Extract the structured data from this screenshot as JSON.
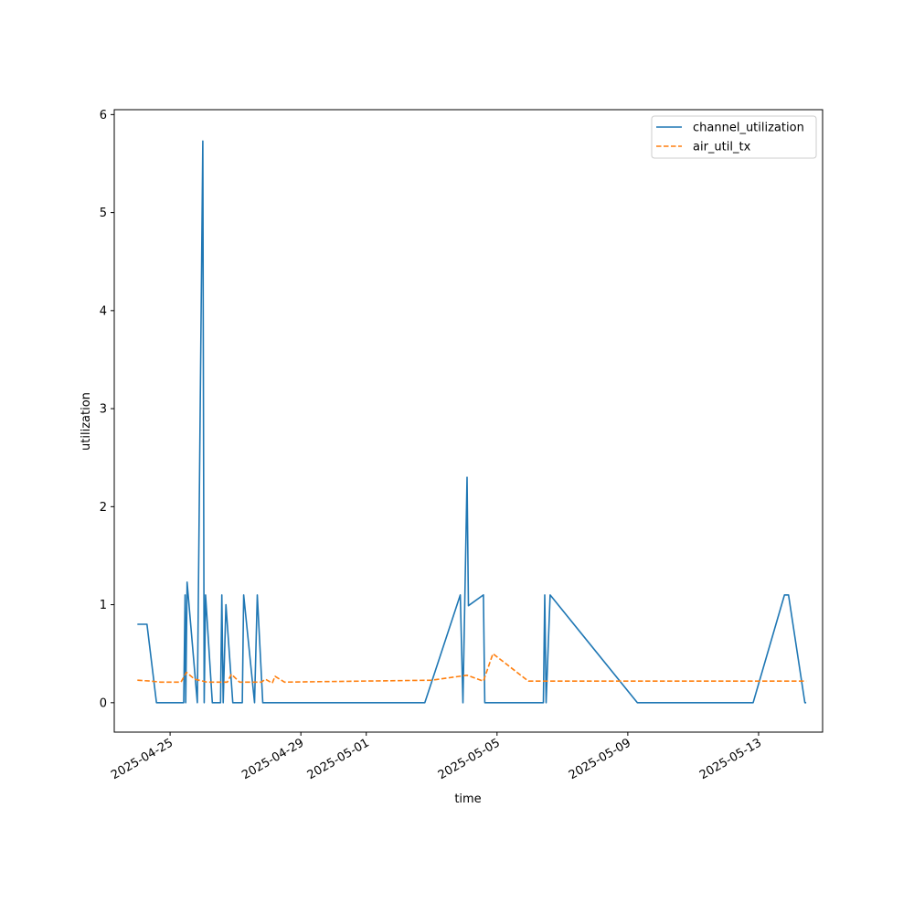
{
  "chart_data": {
    "type": "line",
    "title": "",
    "xlabel": "time",
    "ylabel": "utilization",
    "x_axis_type": "date",
    "xlim": [
      "2025-04-23T07:00",
      "2025-05-14T23:00"
    ],
    "ylim": [
      -0.3,
      6.05
    ],
    "y_ticks": [
      0,
      1,
      2,
      3,
      4,
      5,
      6
    ],
    "y_tick_labels": [
      "0",
      "1",
      "2",
      "3",
      "4",
      "5",
      "6"
    ],
    "x_ticks": [
      "2025-04-25",
      "2025-04-29",
      "2025-05-01",
      "2025-05-05",
      "2025-05-09",
      "2025-05-13"
    ],
    "x_tick_labels": [
      "2025-04-25",
      "2025-04-29",
      "2025-05-01",
      "2025-05-05",
      "2025-05-09",
      "2025-05-13"
    ],
    "grid": false,
    "legend_position": "top-right",
    "series": [
      {
        "name": "channel_utilization",
        "color": "#1f77b4",
        "style": "solid",
        "points": [
          [
            "2025-04-24T00:00",
            0.8
          ],
          [
            "2025-04-24T07:00",
            0.8
          ],
          [
            "2025-04-24T14:00",
            0.0
          ],
          [
            "2025-04-25T10:00",
            0.0
          ],
          [
            "2025-04-25T11:00",
            1.1
          ],
          [
            "2025-04-25T11:30",
            0.0
          ],
          [
            "2025-04-25T12:30",
            1.23
          ],
          [
            "2025-04-25T20:00",
            0.0
          ],
          [
            "2025-04-26T00:00",
            5.73
          ],
          [
            "2025-04-26T01:00",
            0.0
          ],
          [
            "2025-04-26T02:00",
            1.1
          ],
          [
            "2025-04-26T07:00",
            0.0
          ],
          [
            "2025-04-26T13:00",
            0.0
          ],
          [
            "2025-04-26T14:00",
            1.1
          ],
          [
            "2025-04-26T15:00",
            0.0
          ],
          [
            "2025-04-26T17:00",
            1.0
          ],
          [
            "2025-04-26T22:00",
            0.0
          ],
          [
            "2025-04-27T05:00",
            0.0
          ],
          [
            "2025-04-27T06:00",
            1.1
          ],
          [
            "2025-04-27T14:00",
            0.0
          ],
          [
            "2025-04-27T16:00",
            1.1
          ],
          [
            "2025-04-27T20:00",
            0.0
          ],
          [
            "2025-04-28T20:00",
            0.0
          ],
          [
            "2025-05-02T19:00",
            0.0
          ],
          [
            "2025-05-03T21:00",
            1.1
          ],
          [
            "2025-05-03T23:00",
            0.0
          ],
          [
            "2025-05-04T02:00",
            2.3
          ],
          [
            "2025-05-04T03:00",
            0.99
          ],
          [
            "2025-05-04T14:00",
            1.1
          ],
          [
            "2025-05-04T15:00",
            0.0
          ],
          [
            "2025-05-06T10:00",
            0.0
          ],
          [
            "2025-05-06T11:00",
            1.1
          ],
          [
            "2025-05-06T12:00",
            0.0
          ],
          [
            "2025-05-06T15:00",
            1.1
          ],
          [
            "2025-05-09T07:00",
            0.0
          ],
          [
            "2025-05-12T20:00",
            0.0
          ],
          [
            "2025-05-13T19:00",
            1.1
          ],
          [
            "2025-05-13T22:00",
            1.1
          ],
          [
            "2025-05-14T10:00",
            0.0
          ],
          [
            "2025-05-14T11:00",
            0.0
          ]
        ]
      },
      {
        "name": "air_util_tx",
        "color": "#ff7f0e",
        "style": "dashed",
        "points": [
          [
            "2025-04-24T00:00",
            0.23
          ],
          [
            "2025-04-24T10:00",
            0.22
          ],
          [
            "2025-04-24T17:00",
            0.21
          ],
          [
            "2025-04-25T08:00",
            0.21
          ],
          [
            "2025-04-25T12:00",
            0.31
          ],
          [
            "2025-04-25T18:00",
            0.24
          ],
          [
            "2025-04-26T03:00",
            0.21
          ],
          [
            "2025-04-26T18:00",
            0.21
          ],
          [
            "2025-04-26T21:00",
            0.29
          ],
          [
            "2025-04-27T03:00",
            0.21
          ],
          [
            "2025-04-27T19:00",
            0.21
          ],
          [
            "2025-04-27T22:00",
            0.24
          ],
          [
            "2025-04-28T03:00",
            0.2
          ],
          [
            "2025-04-28T05:00",
            0.27
          ],
          [
            "2025-04-28T12:00",
            0.21
          ],
          [
            "2025-05-03T00:00",
            0.23
          ],
          [
            "2025-05-04T02:00",
            0.28
          ],
          [
            "2025-05-04T14:00",
            0.22
          ],
          [
            "2025-05-04T21:00",
            0.5
          ],
          [
            "2025-05-05T23:00",
            0.22
          ],
          [
            "2025-05-14T11:00",
            0.22
          ]
        ]
      }
    ]
  }
}
